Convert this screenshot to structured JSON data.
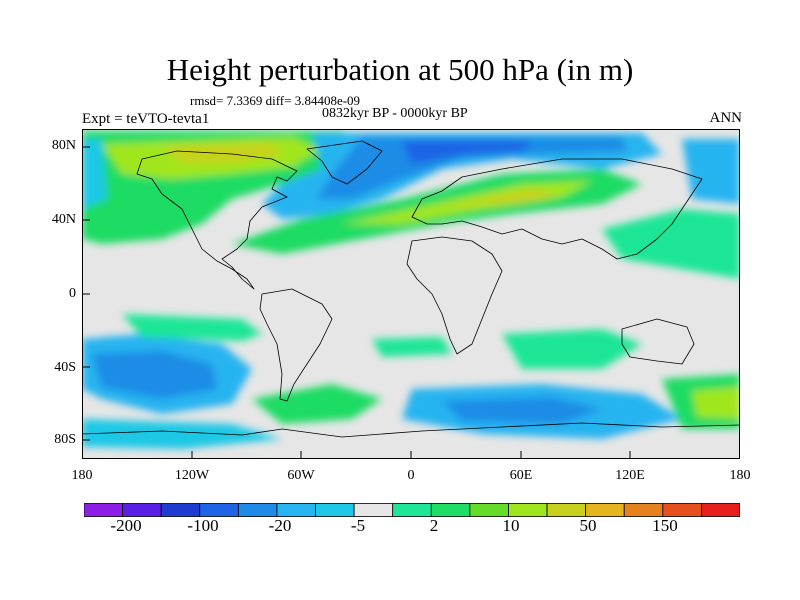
{
  "header": {
    "title": "Height perturbation at 500 hPa (in m)",
    "stats": "rmsd= 7.3369 diff= 3.84408e-09",
    "period": "0832kyr BP - 0000kyr BP",
    "experiment": "Expt = teVTO-tevta1",
    "season": "ANN"
  },
  "map": {
    "projection": "cylindrical-equidistant",
    "lon_range": [
      -180,
      180
    ],
    "lat_range": [
      -90,
      90
    ],
    "lat_ticks": [
      "80N",
      "40N",
      "0",
      "40S",
      "80S"
    ],
    "lon_ticks": [
      "180",
      "120W",
      "60W",
      "0",
      "60E",
      "120E",
      "180"
    ],
    "background_color": "#e6e6e6",
    "coastline_color": "#000000"
  },
  "colorbar": {
    "labels": [
      "-200",
      "-100",
      "-20",
      "-5",
      "2",
      "10",
      "50",
      "150"
    ],
    "colors": [
      "#8c1ee6",
      "#5a1ee6",
      "#1e3cd2",
      "#1e64e6",
      "#1e8ce6",
      "#28b4f0",
      "#1ec8e6",
      "#e6e6e6",
      "#1ee696",
      "#1edc64",
      "#64dc28",
      "#a0e61e",
      "#c8d21e",
      "#e6b41e",
      "#e6821e",
      "#e6501e",
      "#e61e1e"
    ]
  }
}
